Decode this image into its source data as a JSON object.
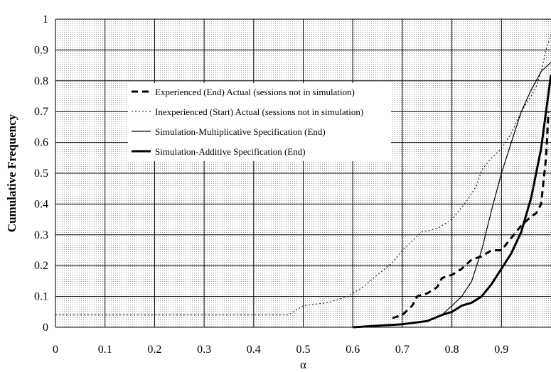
{
  "chart_data": {
    "type": "line",
    "title": "",
    "xlabel": "α",
    "ylabel": "Cumulative Frequency",
    "xlim": [
      0,
      1
    ],
    "ylim": [
      0,
      1
    ],
    "x_ticks": [
      "0",
      "0.1",
      "0.2",
      "0.3",
      "0.4",
      "0.5",
      "0.6",
      "0.7",
      "0.8",
      "0.9"
    ],
    "y_ticks": [
      "0",
      "0.1",
      "0.2",
      "0.3",
      "0.4",
      "0.5",
      "0.6",
      "0.7",
      "0.8",
      "0.9",
      "1"
    ],
    "grid": true,
    "legend_position": "upper-center",
    "series": [
      {
        "name": "Experienced (End) Actual (sessions not in simulation)",
        "style": "dashed",
        "color": "#000000",
        "points": [
          [
            0.68,
            0.03
          ],
          [
            0.7,
            0.04
          ],
          [
            0.72,
            0.07
          ],
          [
            0.73,
            0.1
          ],
          [
            0.75,
            0.11
          ],
          [
            0.77,
            0.13
          ],
          [
            0.78,
            0.16
          ],
          [
            0.8,
            0.17
          ],
          [
            0.82,
            0.19
          ],
          [
            0.84,
            0.22
          ],
          [
            0.86,
            0.23
          ],
          [
            0.88,
            0.25
          ],
          [
            0.9,
            0.25
          ],
          [
            0.92,
            0.29
          ],
          [
            0.94,
            0.33
          ],
          [
            0.96,
            0.36
          ],
          [
            0.97,
            0.37
          ],
          [
            0.98,
            0.4
          ],
          [
            0.99,
            0.55
          ],
          [
            0.995,
            0.7
          ]
        ]
      },
      {
        "name": "Inexperienced (Start) Actual (sessions not in simulation)",
        "style": "dotted",
        "color": "#000000",
        "points": [
          [
            0.0,
            0.04
          ],
          [
            0.47,
            0.04
          ],
          [
            0.5,
            0.07
          ],
          [
            0.55,
            0.08
          ],
          [
            0.59,
            0.1
          ],
          [
            0.62,
            0.13
          ],
          [
            0.65,
            0.17
          ],
          [
            0.68,
            0.21
          ],
          [
            0.7,
            0.25
          ],
          [
            0.72,
            0.28
          ],
          [
            0.74,
            0.31
          ],
          [
            0.77,
            0.32
          ],
          [
            0.8,
            0.35
          ],
          [
            0.83,
            0.41
          ],
          [
            0.85,
            0.46
          ],
          [
            0.86,
            0.51
          ],
          [
            0.88,
            0.55
          ],
          [
            0.9,
            0.58
          ],
          [
            0.92,
            0.63
          ],
          [
            0.94,
            0.7
          ],
          [
            0.96,
            0.75
          ],
          [
            0.97,
            0.78
          ],
          [
            0.98,
            0.83
          ],
          [
            0.99,
            0.9
          ],
          [
            1.0,
            0.95
          ]
        ]
      },
      {
        "name": "Simulation-Multiplicative Specification (End)",
        "style": "thin",
        "color": "#000000",
        "points": [
          [
            0.6,
            0.0
          ],
          [
            0.7,
            0.01
          ],
          [
            0.75,
            0.02
          ],
          [
            0.78,
            0.04
          ],
          [
            0.8,
            0.07
          ],
          [
            0.82,
            0.1
          ],
          [
            0.84,
            0.15
          ],
          [
            0.86,
            0.25
          ],
          [
            0.88,
            0.38
          ],
          [
            0.9,
            0.5
          ],
          [
            0.92,
            0.6
          ],
          [
            0.94,
            0.7
          ],
          [
            0.96,
            0.77
          ],
          [
            0.98,
            0.83
          ],
          [
            1.0,
            0.86
          ]
        ]
      },
      {
        "name": "Simulation-Additive Specification (End)",
        "style": "thick",
        "color": "#000000",
        "points": [
          [
            0.6,
            0.0
          ],
          [
            0.7,
            0.01
          ],
          [
            0.75,
            0.02
          ],
          [
            0.78,
            0.04
          ],
          [
            0.8,
            0.05
          ],
          [
            0.82,
            0.07
          ],
          [
            0.84,
            0.08
          ],
          [
            0.86,
            0.1
          ],
          [
            0.88,
            0.14
          ],
          [
            0.9,
            0.19
          ],
          [
            0.92,
            0.24
          ],
          [
            0.94,
            0.31
          ],
          [
            0.96,
            0.42
          ],
          [
            0.98,
            0.58
          ],
          [
            1.0,
            0.82
          ]
        ]
      }
    ]
  }
}
